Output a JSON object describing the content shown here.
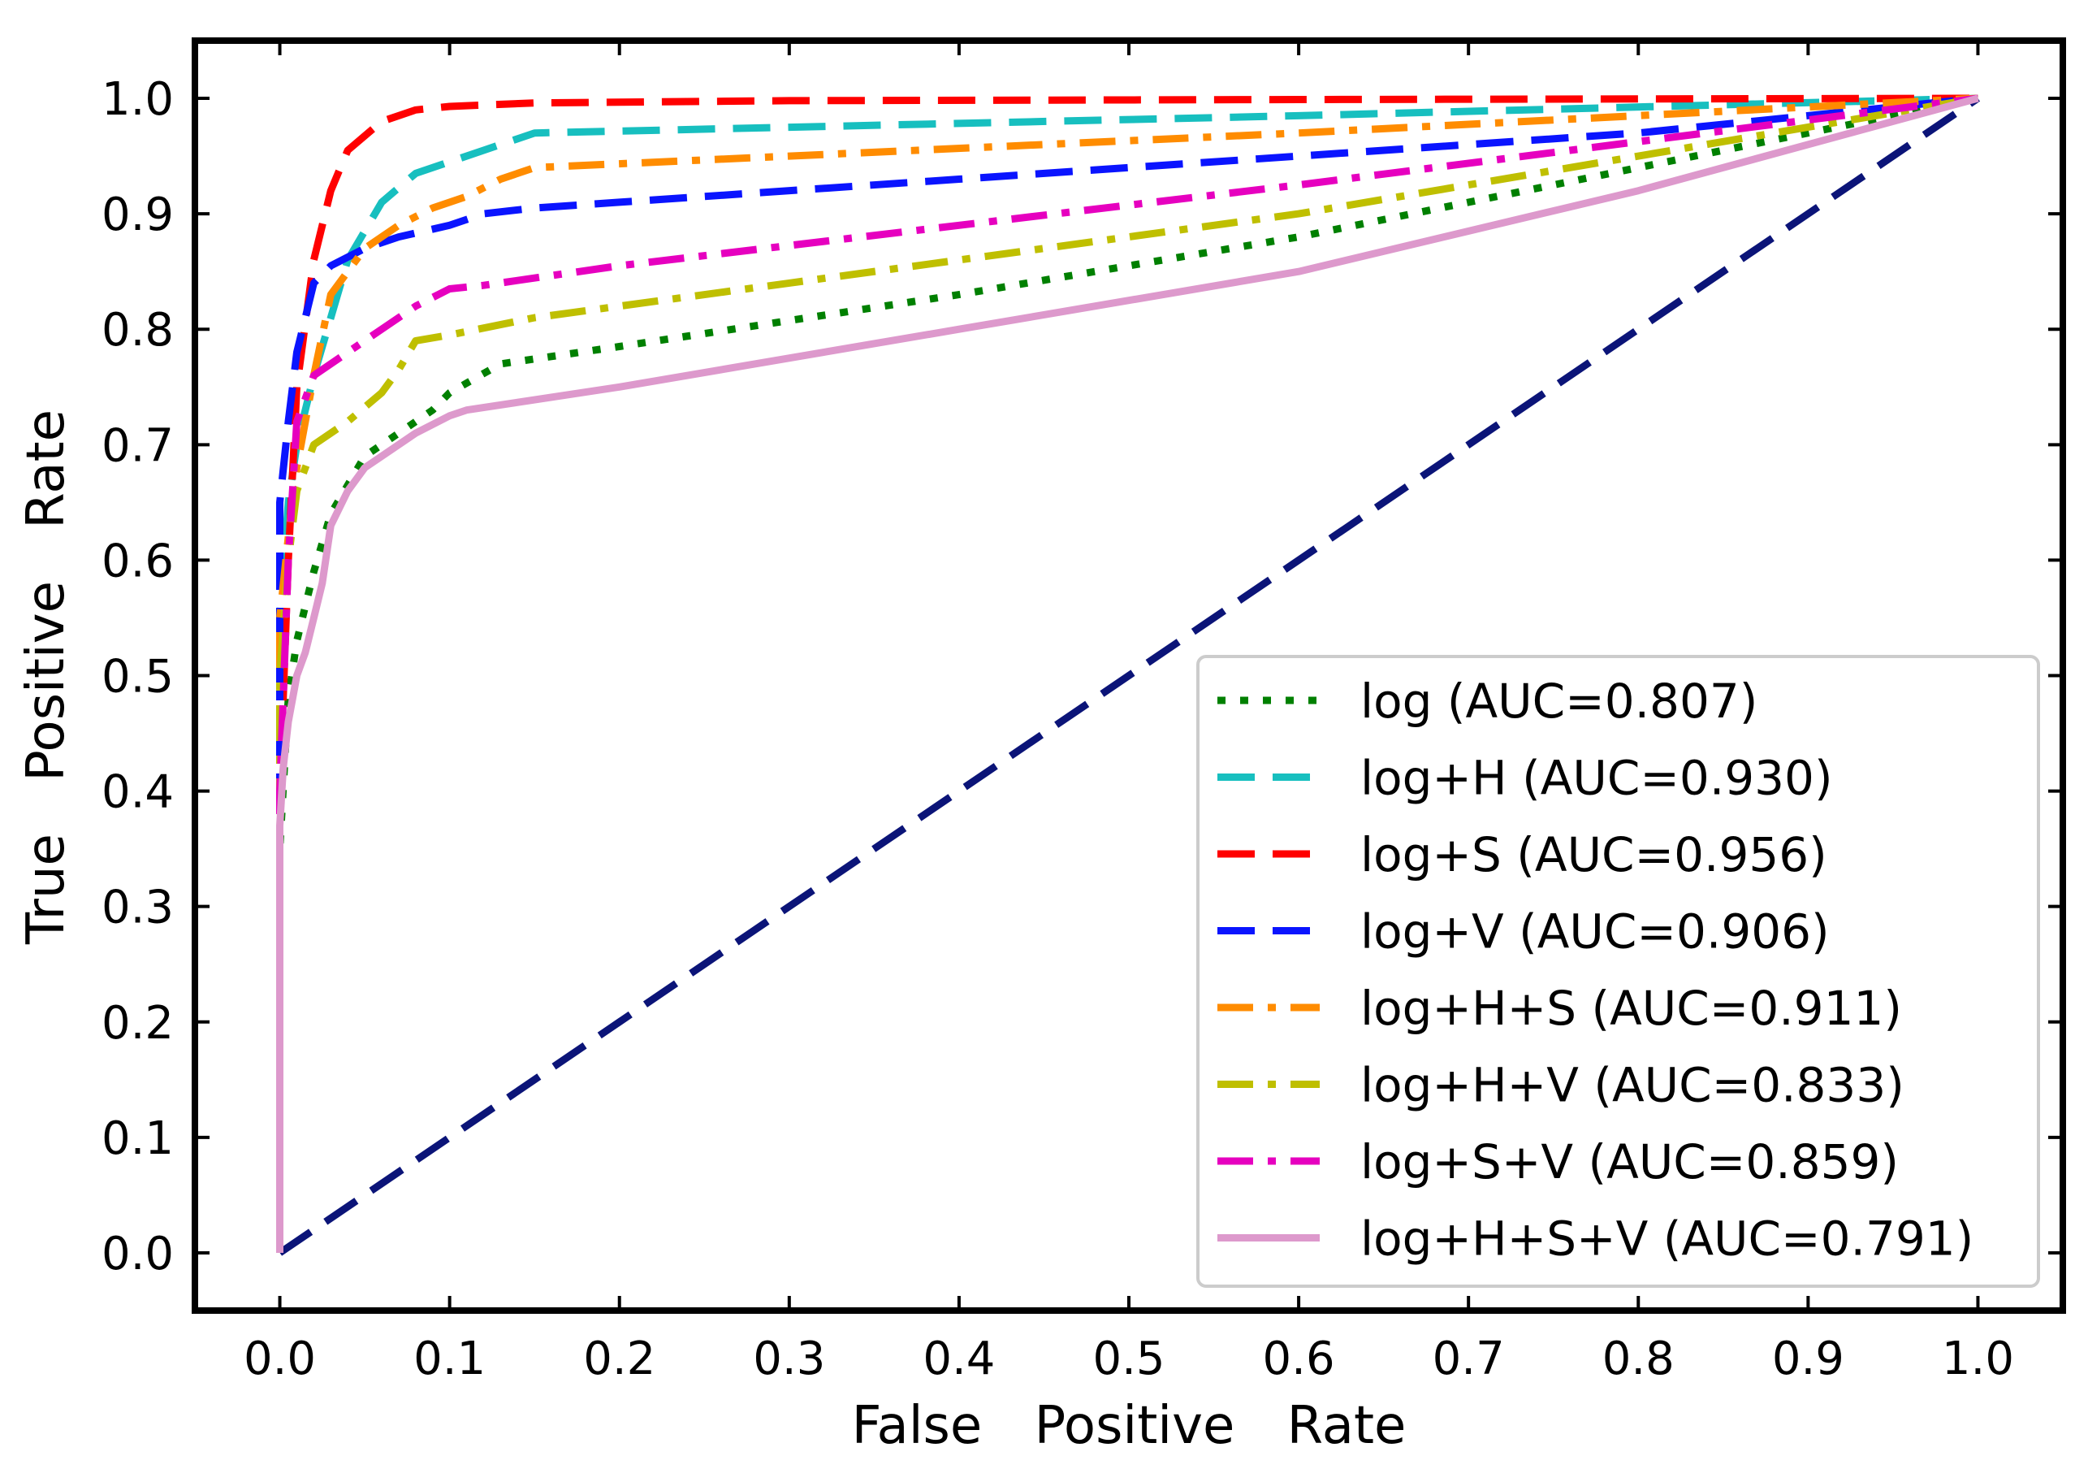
{
  "chart_data": {
    "type": "line",
    "title": "",
    "xlabel": "False Positive Rate",
    "ylabel": "True Positive Rate",
    "xlim": [
      -0.05,
      1.05
    ],
    "ylim": [
      -0.05,
      1.05
    ],
    "xticks": [
      0.0,
      0.1,
      0.2,
      0.3,
      0.4,
      0.5,
      0.6,
      0.7,
      0.8,
      0.9,
      1.0
    ],
    "yticks": [
      0.0,
      0.1,
      0.2,
      0.3,
      0.4,
      0.5,
      0.6,
      0.7,
      0.8,
      0.9,
      1.0
    ],
    "xtick_labels": [
      "0.0",
      "0.1",
      "0.2",
      "0.3",
      "0.4",
      "0.5",
      "0.6",
      "0.7",
      "0.8",
      "0.9",
      "1.0"
    ],
    "ytick_labels": [
      "0.0",
      "0.1",
      "0.2",
      "0.3",
      "0.4",
      "0.5",
      "0.6",
      "0.7",
      "0.8",
      "0.9",
      "1.0"
    ],
    "legend_position": "lower-right",
    "grid": false,
    "diagonal": {
      "color": "#0b1478",
      "style": "dashed",
      "x": [
        0.0,
        1.0
      ],
      "y": [
        0.0,
        1.0
      ]
    },
    "series": [
      {
        "name": "log (AUC=0.807)",
        "color": "#008000",
        "style": "dotted",
        "x": [
          0.0,
          0.0,
          0.005,
          0.01,
          0.015,
          0.02,
          0.03,
          0.05,
          0.07,
          0.09,
          0.1,
          0.13,
          0.2,
          0.4,
          0.6,
          0.8,
          1.0
        ],
        "y": [
          0.0,
          0.35,
          0.48,
          0.53,
          0.56,
          0.59,
          0.64,
          0.69,
          0.71,
          0.73,
          0.745,
          0.77,
          0.785,
          0.83,
          0.88,
          0.94,
          1.0
        ]
      },
      {
        "name": "log+H (AUC=0.930)",
        "color": "#17bfbf",
        "style": "dashed",
        "x": [
          0.0,
          0.0,
          0.005,
          0.01,
          0.02,
          0.04,
          0.06,
          0.08,
          0.1,
          0.12,
          0.15,
          0.3,
          0.6,
          1.0
        ],
        "y": [
          0.0,
          0.55,
          0.65,
          0.7,
          0.76,
          0.86,
          0.91,
          0.935,
          0.945,
          0.955,
          0.97,
          0.975,
          0.985,
          1.0
        ]
      },
      {
        "name": "log+S (AUC=0.956)",
        "color": "#ff0000",
        "style": "dashed",
        "x": [
          0.0,
          0.0,
          0.005,
          0.01,
          0.02,
          0.03,
          0.04,
          0.06,
          0.08,
          0.1,
          0.15,
          0.3,
          0.6,
          1.0
        ],
        "y": [
          0.0,
          0.4,
          0.6,
          0.75,
          0.86,
          0.92,
          0.955,
          0.98,
          0.99,
          0.993,
          0.996,
          0.998,
          0.999,
          1.0
        ]
      },
      {
        "name": "log+V (AUC=0.906)",
        "color": "#0a14ff",
        "style": "dashed",
        "x": [
          0.0,
          0.0,
          0.005,
          0.01,
          0.02,
          0.03,
          0.05,
          0.07,
          0.1,
          0.12,
          0.15,
          0.2,
          0.4,
          0.6,
          0.8,
          1.0
        ],
        "y": [
          0.0,
          0.65,
          0.72,
          0.78,
          0.84,
          0.855,
          0.87,
          0.88,
          0.89,
          0.9,
          0.905,
          0.91,
          0.93,
          0.95,
          0.97,
          1.0
        ]
      },
      {
        "name": "log+H+S (AUC=0.911)",
        "color": "#ff8c00",
        "style": "dashdot",
        "x": [
          0.0,
          0.0,
          0.005,
          0.01,
          0.02,
          0.03,
          0.05,
          0.07,
          0.09,
          0.11,
          0.13,
          0.15,
          0.3,
          0.6,
          1.0
        ],
        "y": [
          0.0,
          0.55,
          0.62,
          0.68,
          0.76,
          0.83,
          0.87,
          0.89,
          0.905,
          0.915,
          0.93,
          0.94,
          0.95,
          0.97,
          1.0
        ]
      },
      {
        "name": "log+H+V (AUC=0.833)",
        "color": "#bfbf00",
        "style": "dashdot",
        "x": [
          0.0,
          0.0,
          0.005,
          0.01,
          0.02,
          0.04,
          0.06,
          0.07,
          0.08,
          0.1,
          0.15,
          0.3,
          0.6,
          1.0
        ],
        "y": [
          0.0,
          0.5,
          0.6,
          0.66,
          0.7,
          0.72,
          0.745,
          0.765,
          0.79,
          0.795,
          0.81,
          0.84,
          0.9,
          1.0
        ]
      },
      {
        "name": "log+S+V (AUC=0.859)",
        "color": "#e600bf",
        "style": "dashdot",
        "x": [
          0.0,
          0.0,
          0.005,
          0.01,
          0.02,
          0.04,
          0.06,
          0.08,
          0.1,
          0.12,
          0.2,
          0.4,
          0.6,
          1.0
        ],
        "y": [
          0.0,
          0.4,
          0.6,
          0.72,
          0.76,
          0.78,
          0.8,
          0.82,
          0.835,
          0.838,
          0.855,
          0.89,
          0.925,
          1.0
        ]
      },
      {
        "name": "log+H+S+V (AUC=0.791)",
        "color": "#dd99cc",
        "style": "solid",
        "x": [
          0.0,
          0.0,
          0.002,
          0.005,
          0.01,
          0.015,
          0.02,
          0.025,
          0.03,
          0.04,
          0.05,
          0.06,
          0.08,
          0.1,
          0.11,
          0.2,
          0.4,
          0.6,
          0.8,
          1.0
        ],
        "y": [
          0.0,
          0.37,
          0.42,
          0.46,
          0.5,
          0.52,
          0.55,
          0.58,
          0.63,
          0.66,
          0.68,
          0.69,
          0.71,
          0.725,
          0.73,
          0.75,
          0.8,
          0.85,
          0.92,
          1.0
        ]
      }
    ]
  }
}
